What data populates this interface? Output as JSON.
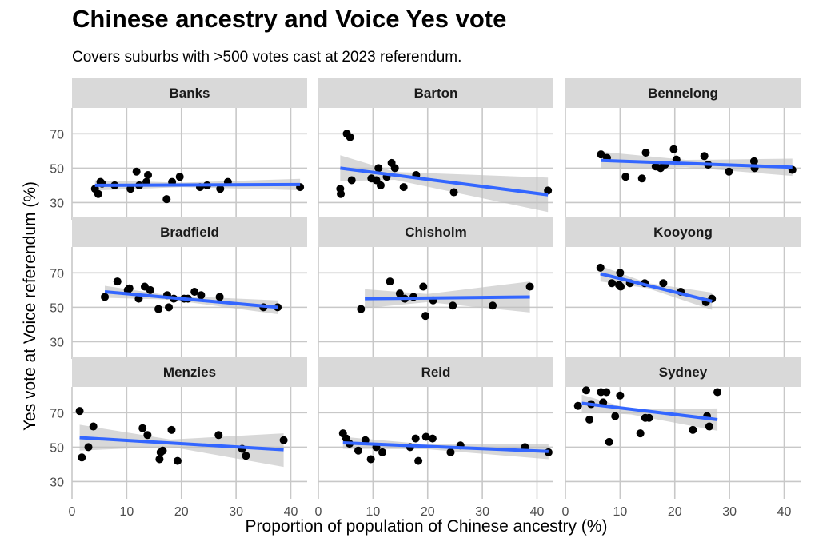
{
  "chart_data": {
    "type": "scatter",
    "title": "Chinese ancestry and Voice Yes vote",
    "subtitle": "Covers suburbs with >500 votes cast at 2023 referendum.",
    "xlabel": "Proportion of population of Chinese ancestry (%)",
    "ylabel": "Yes vote at Voice referendum (%)",
    "xlim": [
      0,
      43
    ],
    "ylim": [
      20,
      85
    ],
    "xticks": [
      0,
      10,
      20,
      30,
      40
    ],
    "yticks": [
      30,
      50,
      70
    ],
    "grid": true,
    "point_color": "#000000",
    "line_color": "#3366ff",
    "band_color": "#bebebe",
    "strip_color": "#d9d9d9",
    "panels": [
      {
        "name": "Banks",
        "points": [
          [
            4.2,
            38
          ],
          [
            4.8,
            35
          ],
          [
            5.2,
            42
          ],
          [
            5.5,
            41
          ],
          [
            7.8,
            40
          ],
          [
            10.7,
            38
          ],
          [
            11.8,
            48
          ],
          [
            12.3,
            40
          ],
          [
            13.6,
            42
          ],
          [
            13.9,
            46
          ],
          [
            17.3,
            32
          ],
          [
            18.3,
            42
          ],
          [
            19.7,
            45
          ],
          [
            23.4,
            39
          ],
          [
            24.7,
            40
          ],
          [
            27.1,
            38
          ],
          [
            28.5,
            42
          ],
          [
            41.7,
            39
          ]
        ],
        "fit": [
          [
            4.2,
            40.0
          ],
          [
            41.7,
            40.5
          ]
        ],
        "band": [
          [
            4.2,
            43.0,
            37.0
          ],
          [
            20,
            41.6,
            39.0
          ],
          [
            41.7,
            43.8,
            37.2
          ]
        ]
      },
      {
        "name": "Barton",
        "points": [
          [
            4.0,
            38
          ],
          [
            4.1,
            35
          ],
          [
            5.2,
            70
          ],
          [
            5.8,
            68
          ],
          [
            6.1,
            43
          ],
          [
            9.7,
            44
          ],
          [
            10.6,
            43
          ],
          [
            11.0,
            50
          ],
          [
            11.4,
            40
          ],
          [
            12.5,
            45
          ],
          [
            13.4,
            53
          ],
          [
            14.0,
            50
          ],
          [
            15.6,
            39
          ],
          [
            17.9,
            46
          ],
          [
            24.8,
            36
          ],
          [
            42.0,
            37
          ]
        ],
        "fit": [
          [
            4.0,
            50.0
          ],
          [
            42.0,
            34.5
          ]
        ],
        "band": [
          [
            4.0,
            57.5,
            42.5
          ],
          [
            14,
            47.8,
            43.2
          ],
          [
            42.0,
            44.5,
            24.5
          ]
        ]
      },
      {
        "name": "Bennelong",
        "points": [
          [
            6.5,
            58
          ],
          [
            7.6,
            56
          ],
          [
            11.0,
            45
          ],
          [
            14.0,
            44
          ],
          [
            14.7,
            59
          ],
          [
            16.5,
            51
          ],
          [
            17.4,
            50
          ],
          [
            18.2,
            52
          ],
          [
            19.8,
            61
          ],
          [
            20.3,
            55
          ],
          [
            25.4,
            57
          ],
          [
            26.1,
            52
          ],
          [
            29.9,
            48
          ],
          [
            34.5,
            54
          ],
          [
            34.6,
            50
          ],
          [
            41.5,
            49
          ]
        ],
        "fit": [
          [
            6.5,
            54.5
          ],
          [
            41.5,
            50.5
          ]
        ],
        "band": [
          [
            6.5,
            59.5,
            49.5
          ],
          [
            22,
            54.8,
            50.6
          ],
          [
            41.5,
            55.5,
            45.5
          ]
        ]
      },
      {
        "name": "Bradfield",
        "points": [
          [
            6.0,
            56
          ],
          [
            8.3,
            65
          ],
          [
            10.2,
            60
          ],
          [
            10.5,
            61
          ],
          [
            12.2,
            55
          ],
          [
            13.3,
            62
          ],
          [
            14.3,
            60
          ],
          [
            15.8,
            49
          ],
          [
            17.4,
            57
          ],
          [
            17.7,
            50
          ],
          [
            18.6,
            55
          ],
          [
            20.5,
            55
          ],
          [
            21.2,
            55
          ],
          [
            22.4,
            59
          ],
          [
            23.6,
            57
          ],
          [
            27.0,
            56
          ],
          [
            35.0,
            50
          ],
          [
            37.6,
            50
          ]
        ],
        "fit": [
          [
            6.0,
            59.0
          ],
          [
            37.6,
            50.0
          ]
        ],
        "band": [
          [
            6.0,
            62.5,
            55.5
          ],
          [
            18,
            56.8,
            54.4
          ],
          [
            37.6,
            54.0,
            46.0
          ]
        ]
      },
      {
        "name": "Chisholm",
        "points": [
          [
            7.8,
            49
          ],
          [
            13.1,
            65
          ],
          [
            14.9,
            58
          ],
          [
            15.8,
            55
          ],
          [
            17.4,
            56
          ],
          [
            19.2,
            62
          ],
          [
            19.6,
            45
          ],
          [
            21.0,
            54
          ],
          [
            24.6,
            51
          ],
          [
            31.9,
            51
          ],
          [
            38.7,
            62
          ]
        ],
        "fit": [
          [
            8.5,
            55.0
          ],
          [
            38.7,
            56.0
          ]
        ],
        "band": [
          [
            8.5,
            60.5,
            49.5
          ],
          [
            20,
            57.7,
            53.0
          ],
          [
            38.7,
            65.0,
            47.0
          ]
        ]
      },
      {
        "name": "Kooyong",
        "points": [
          [
            6.4,
            73
          ],
          [
            8.5,
            64
          ],
          [
            9.8,
            63
          ],
          [
            10.0,
            70
          ],
          [
            10.1,
            62
          ],
          [
            11.8,
            64
          ],
          [
            14.5,
            64
          ],
          [
            17.9,
            64
          ],
          [
            21.1,
            59
          ],
          [
            25.7,
            53
          ],
          [
            26.8,
            55
          ]
        ],
        "fit": [
          [
            6.4,
            69.5
          ],
          [
            26.8,
            53.5
          ]
        ],
        "band": [
          [
            6.4,
            74.0,
            65.0
          ],
          [
            15,
            64.1,
            61.1
          ],
          [
            26.8,
            58.5,
            48.5
          ]
        ]
      },
      {
        "name": "Menzies",
        "points": [
          [
            1.4,
            71
          ],
          [
            1.8,
            44
          ],
          [
            3.0,
            50
          ],
          [
            3.9,
            62
          ],
          [
            12.9,
            61
          ],
          [
            13.8,
            57
          ],
          [
            16.0,
            43
          ],
          [
            16.2,
            47
          ],
          [
            16.6,
            48
          ],
          [
            18.2,
            60
          ],
          [
            19.3,
            42
          ],
          [
            26.8,
            57
          ],
          [
            31.1,
            49
          ],
          [
            31.8,
            45
          ],
          [
            38.7,
            54
          ]
        ],
        "fit": [
          [
            1.4,
            55.5
          ],
          [
            38.7,
            48.5
          ]
        ],
        "band": [
          [
            1.4,
            63.0,
            48.0
          ],
          [
            18,
            54.4,
            50.2
          ],
          [
            38.7,
            58.0,
            38.5
          ]
        ]
      },
      {
        "name": "Reid",
        "points": [
          [
            4.5,
            58
          ],
          [
            5.1,
            55
          ],
          [
            5.7,
            52
          ],
          [
            7.3,
            48
          ],
          [
            8.6,
            54
          ],
          [
            9.6,
            43
          ],
          [
            10.6,
            50
          ],
          [
            11.7,
            47
          ],
          [
            16.8,
            50
          ],
          [
            17.8,
            55
          ],
          [
            18.3,
            42
          ],
          [
            19.7,
            56
          ],
          [
            20.9,
            55
          ],
          [
            24.2,
            47
          ],
          [
            26.0,
            51
          ],
          [
            37.8,
            50
          ],
          [
            42.1,
            47
          ]
        ],
        "fit": [
          [
            4.5,
            52.5
          ],
          [
            42.1,
            47.5
          ]
        ],
        "band": [
          [
            4.5,
            56.0,
            49.0
          ],
          [
            20,
            51.6,
            48.8
          ],
          [
            42.1,
            52.0,
            43.0
          ]
        ]
      },
      {
        "name": "Sydney",
        "points": [
          [
            2.3,
            74
          ],
          [
            3.8,
            83
          ],
          [
            4.4,
            66
          ],
          [
            4.7,
            75
          ],
          [
            6.5,
            82
          ],
          [
            6.9,
            76
          ],
          [
            7.5,
            82
          ],
          [
            8.0,
            53
          ],
          [
            9.1,
            68
          ],
          [
            10.0,
            80
          ],
          [
            13.7,
            58
          ],
          [
            14.6,
            67
          ],
          [
            15.3,
            67
          ],
          [
            23.3,
            60
          ],
          [
            25.9,
            68
          ],
          [
            26.3,
            62
          ],
          [
            27.8,
            82
          ]
        ],
        "fit": [
          [
            3.0,
            75.5
          ],
          [
            27.8,
            66.0
          ]
        ],
        "band": [
          [
            3.0,
            80.5,
            70.5
          ],
          [
            12,
            72.0,
            69.0
          ],
          [
            27.8,
            72.5,
            59.5
          ]
        ]
      }
    ]
  }
}
